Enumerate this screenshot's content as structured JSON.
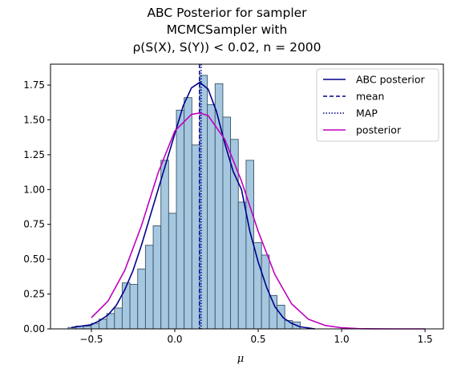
{
  "chart_data": {
    "type": "bar",
    "title_lines": [
      "ABC Posterior for sampler",
      "MCMCSampler with",
      "ρ(S(X), S(Y)) < 0.02, n = 2000"
    ],
    "xlabel": "μ",
    "ylabel": "",
    "xlim": [
      -0.745,
      1.61
    ],
    "ylim": [
      0,
      1.9
    ],
    "xticks": [
      -0.5,
      0.0,
      0.5,
      1.0,
      1.5
    ],
    "xtick_labels": [
      "−0.5",
      "0.0",
      "0.5",
      "1.0",
      "1.5"
    ],
    "yticks": [
      0.0,
      0.25,
      0.5,
      0.75,
      1.0,
      1.25,
      1.5,
      1.75
    ],
    "ytick_labels": [
      "0.00",
      "0.25",
      "0.50",
      "0.75",
      "1.00",
      "1.25",
      "1.50",
      "1.75"
    ],
    "histogram": {
      "bin_edges": [
        -0.64,
        -0.5936,
        -0.5472,
        -0.5008,
        -0.4544,
        -0.408,
        -0.3616,
        -0.3152,
        -0.2688,
        -0.2224,
        -0.176,
        -0.1296,
        -0.0832,
        -0.0368,
        0.0096,
        0.056,
        0.1024,
        0.1488,
        0.1952,
        0.2416,
        0.288,
        0.3344,
        0.3808,
        0.4272,
        0.4736,
        0.52,
        0.5664,
        0.6128,
        0.6592,
        0.7056,
        0.752
      ],
      "heights": [
        0.01,
        0.02,
        0.02,
        0.04,
        0.07,
        0.11,
        0.15,
        0.33,
        0.32,
        0.43,
        0.6,
        0.74,
        1.21,
        0.83,
        1.57,
        1.66,
        1.32,
        1.82,
        1.61,
        1.76,
        1.52,
        1.36,
        0.91,
        1.21,
        0.62,
        0.53,
        0.24,
        0.17,
        0.06,
        0.05
      ]
    },
    "series": [
      {
        "name": "ABC posterior",
        "style": "solid",
        "x": [
          -0.62,
          -0.5,
          -0.45,
          -0.4,
          -0.35,
          -0.3,
          -0.25,
          -0.2,
          -0.15,
          -0.1,
          -0.05,
          0.0,
          0.05,
          0.1,
          0.15,
          0.2,
          0.25,
          0.3,
          0.35,
          0.4,
          0.45,
          0.5,
          0.55,
          0.6,
          0.65,
          0.7,
          0.75,
          0.84
        ],
        "y": [
          0.01,
          0.03,
          0.06,
          0.1,
          0.17,
          0.28,
          0.42,
          0.6,
          0.8,
          1.0,
          1.2,
          1.4,
          1.6,
          1.73,
          1.77,
          1.72,
          1.56,
          1.33,
          1.13,
          1.0,
          0.7,
          0.48,
          0.3,
          0.16,
          0.08,
          0.04,
          0.015,
          0.0
        ]
      },
      {
        "name": "posterior",
        "style": "solid",
        "x": [
          -0.5,
          -0.4,
          -0.3,
          -0.2,
          -0.1,
          0.0,
          0.1,
          0.15,
          0.2,
          0.3,
          0.4,
          0.5,
          0.6,
          0.7,
          0.8,
          0.9,
          1.0,
          1.1,
          1.2,
          1.3,
          1.4,
          1.5
        ],
        "y": [
          0.08,
          0.2,
          0.42,
          0.74,
          1.12,
          1.42,
          1.54,
          1.55,
          1.53,
          1.36,
          1.06,
          0.7,
          0.39,
          0.18,
          0.07,
          0.025,
          0.008,
          0.002,
          0.0005,
          0.0,
          0.0,
          0.0
        ]
      }
    ],
    "vlines": [
      {
        "name": "mean",
        "x": 0.148,
        "style": "dashed"
      },
      {
        "name": "MAP",
        "x": 0.158,
        "style": "dotted"
      }
    ],
    "legend": {
      "placement": "top-right",
      "entries": [
        "ABC posterior",
        "mean",
        "MAP",
        "posterior"
      ]
    },
    "grid": false,
    "colors": {
      "bars_fill": "#a5c7e0",
      "bars_edge": "#3d5566",
      "abc_posterior": "#00008b",
      "mean": "#00008b",
      "map": "#00008b",
      "posterior": "#bf00bf"
    }
  }
}
